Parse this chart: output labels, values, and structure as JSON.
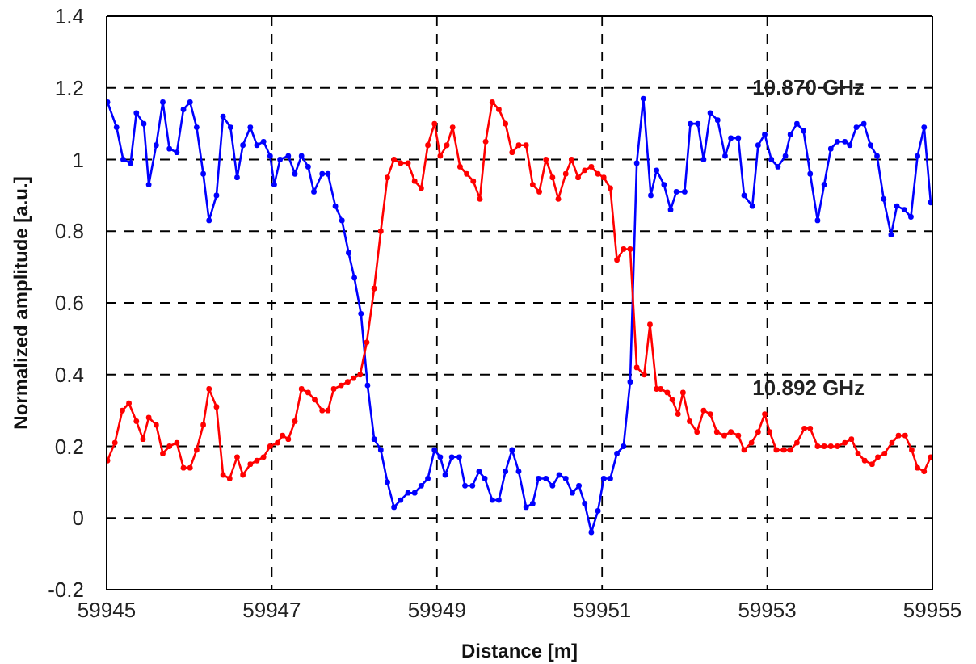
{
  "chart_data": {
    "type": "line",
    "xlabel": "Distance [m]",
    "ylabel": "Normalized amplitude [a.u.]",
    "xlim": [
      59945,
      59955
    ],
    "xticks": [
      59945,
      59947,
      59949,
      59951,
      59953,
      59955
    ],
    "ylim": [
      -0.2,
      1.4
    ],
    "yticks": [
      -0.2,
      0,
      0.2,
      0.4,
      0.6,
      0.8,
      1,
      1.2,
      1.4
    ],
    "grid": true,
    "marker": "circle",
    "line_style": "solid",
    "series": [
      {
        "name": "10.870 GHz",
        "color": "#0000ff",
        "x": [
          59945.01,
          59945.12,
          59945.2,
          59945.29,
          59945.36,
          59945.45,
          59945.51,
          59945.6,
          59945.68,
          59945.76,
          59945.85,
          59945.93,
          59946.01,
          59946.09,
          59946.17,
          59946.24,
          59946.33,
          59946.41,
          59946.5,
          59946.58,
          59946.65,
          59946.74,
          59946.82,
          59946.9,
          59946.98,
          59947.03,
          59947.1,
          59947.2,
          59947.28,
          59947.36,
          59947.44,
          59947.51,
          59947.61,
          59947.68,
          59947.77,
          59947.85,
          59947.93,
          59948,
          59948.08,
          59948.16,
          59948.24,
          59948.32,
          59948.4,
          59948.48,
          59948.56,
          59948.65,
          59948.73,
          59948.81,
          59948.89,
          59948.97,
          59949.04,
          59949.1,
          59949.18,
          59949.27,
          59949.34,
          59949.43,
          59949.51,
          59949.58,
          59949.67,
          59949.75,
          59949.83,
          59949.91,
          59949.99,
          59950.08,
          59950.16,
          59950.23,
          59950.32,
          59950.4,
          59950.48,
          59950.56,
          59950.64,
          59950.72,
          59950.79,
          59950.87,
          59950.95,
          59951.02,
          59951.1,
          59951.18,
          59951.26,
          59951.34,
          59951.42,
          59951.5,
          59951.59,
          59951.66,
          59951.75,
          59951.83,
          59951.9,
          59952,
          59952.07,
          59952.16,
          59952.23,
          59952.31,
          59952.4,
          59952.49,
          59952.56,
          59952.65,
          59952.72,
          59952.82,
          59952.89,
          59952.97,
          59953.05,
          59953.13,
          59953.22,
          59953.28,
          59953.36,
          59953.44,
          59953.52,
          59953.61,
          59953.69,
          59953.77,
          59953.85,
          59953.94,
          59954,
          59954.08,
          59954.17,
          59954.25,
          59954.33,
          59954.41,
          59954.5,
          59954.57,
          59954.66,
          59954.74,
          59954.82,
          59954.9,
          59954.98
        ],
        "values": [
          1.16,
          1.09,
          1.0,
          0.99,
          1.13,
          1.1,
          0.93,
          1.04,
          1.16,
          1.03,
          1.02,
          1.14,
          1.16,
          1.09,
          0.96,
          0.83,
          0.9,
          1.12,
          1.09,
          0.95,
          1.04,
          1.09,
          1.04,
          1.05,
          1.01,
          0.93,
          1.0,
          1.01,
          0.96,
          1.01,
          0.98,
          0.91,
          0.96,
          0.96,
          0.87,
          0.83,
          0.74,
          0.67,
          0.57,
          0.37,
          0.22,
          0.19,
          0.1,
          0.03,
          0.05,
          0.07,
          0.07,
          0.09,
          0.11,
          0.19,
          0.17,
          0.12,
          0.17,
          0.17,
          0.09,
          0.09,
          0.13,
          0.11,
          0.05,
          0.05,
          0.13,
          0.19,
          0.13,
          0.03,
          0.04,
          0.11,
          0.11,
          0.09,
          0.12,
          0.11,
          0.07,
          0.09,
          0.04,
          -0.04,
          0.02,
          0.11,
          0.11,
          0.18,
          0.2,
          0.38,
          0.99,
          1.17,
          0.9,
          0.97,
          0.93,
          0.86,
          0.91,
          0.91,
          1.1,
          1.1,
          1.0,
          1.13,
          1.11,
          1.01,
          1.06,
          1.06,
          0.9,
          0.87,
          1.04,
          1.07,
          1.0,
          0.98,
          1.01,
          1.07,
          1.1,
          1.08,
          0.96,
          0.83,
          0.93,
          1.03,
          1.05,
          1.05,
          1.04,
          1.09,
          1.1,
          1.04,
          1.01,
          0.89,
          0.79,
          0.87,
          0.86,
          0.84,
          1.01,
          1.09,
          0.88
        ]
      },
      {
        "name": "10.892 GHz",
        "color": "#ff0000",
        "x": [
          59945.01,
          59945.1,
          59945.19,
          59945.27,
          59945.36,
          59945.44,
          59945.51,
          59945.6,
          59945.68,
          59945.76,
          59945.85,
          59945.93,
          59946.01,
          59946.09,
          59946.17,
          59946.24,
          59946.33,
          59946.41,
          59946.49,
          59946.58,
          59946.65,
          59946.74,
          59946.82,
          59946.9,
          59946.98,
          59947.07,
          59947.13,
          59947.2,
          59947.28,
          59947.36,
          59947.44,
          59947.52,
          59947.61,
          59947.68,
          59947.75,
          59947.84,
          59947.92,
          59947.99,
          59948.07,
          59948.15,
          59948.24,
          59948.32,
          59948.4,
          59948.48,
          59948.56,
          59948.65,
          59948.73,
          59948.81,
          59948.89,
          59948.97,
          59949.04,
          59949.12,
          59949.19,
          59949.28,
          59949.36,
          59949.44,
          59949.52,
          59949.59,
          59949.67,
          59949.75,
          59949.83,
          59949.91,
          59949.99,
          59950.08,
          59950.16,
          59950.24,
          59950.32,
          59950.4,
          59950.47,
          59950.56,
          59950.63,
          59950.71,
          59950.79,
          59950.87,
          59950.95,
          59951.02,
          59951.1,
          59951.18,
          59951.26,
          59951.34,
          59951.42,
          59951.51,
          59951.58,
          59951.66,
          59951.71,
          59951.79,
          59951.85,
          59951.92,
          59951.98,
          59952.06,
          59952.15,
          59952.23,
          59952.31,
          59952.39,
          59952.48,
          59952.56,
          59952.65,
          59952.72,
          59952.81,
          59952.89,
          59952.97,
          59953.03,
          59953.11,
          59953.2,
          59953.28,
          59953.36,
          59953.45,
          59953.52,
          59953.61,
          59953.69,
          59953.77,
          59953.85,
          59953.94,
          59954.02,
          59954.1,
          59954.18,
          59954.27,
          59954.34,
          59954.42,
          59954.51,
          59954.59,
          59954.67,
          59954.75,
          59954.82,
          59954.9,
          59954.98
        ],
        "values": [
          0.16,
          0.21,
          0.3,
          0.32,
          0.27,
          0.22,
          0.28,
          0.26,
          0.18,
          0.2,
          0.21,
          0.14,
          0.14,
          0.19,
          0.26,
          0.36,
          0.31,
          0.12,
          0.11,
          0.17,
          0.12,
          0.15,
          0.16,
          0.17,
          0.2,
          0.21,
          0.23,
          0.22,
          0.27,
          0.36,
          0.35,
          0.33,
          0.3,
          0.3,
          0.36,
          0.37,
          0.38,
          0.39,
          0.4,
          0.49,
          0.64,
          0.8,
          0.95,
          1.0,
          0.99,
          0.99,
          0.94,
          0.92,
          1.04,
          1.1,
          1.01,
          1.04,
          1.09,
          0.98,
          0.96,
          0.94,
          0.89,
          1.05,
          1.16,
          1.14,
          1.1,
          1.02,
          1.04,
          1.04,
          0.93,
          0.91,
          1.0,
          0.95,
          0.89,
          0.96,
          1.0,
          0.95,
          0.97,
          0.98,
          0.96,
          0.95,
          0.92,
          0.72,
          0.75,
          0.75,
          0.42,
          0.4,
          0.54,
          0.36,
          0.36,
          0.35,
          0.33,
          0.29,
          0.35,
          0.27,
          0.24,
          0.3,
          0.29,
          0.24,
          0.23,
          0.24,
          0.23,
          0.19,
          0.21,
          0.24,
          0.29,
          0.24,
          0.19,
          0.19,
          0.19,
          0.21,
          0.25,
          0.25,
          0.2,
          0.2,
          0.2,
          0.2,
          0.21,
          0.22,
          0.18,
          0.16,
          0.15,
          0.17,
          0.18,
          0.21,
          0.23,
          0.23,
          0.19,
          0.14,
          0.13,
          0.17
        ]
      }
    ]
  }
}
